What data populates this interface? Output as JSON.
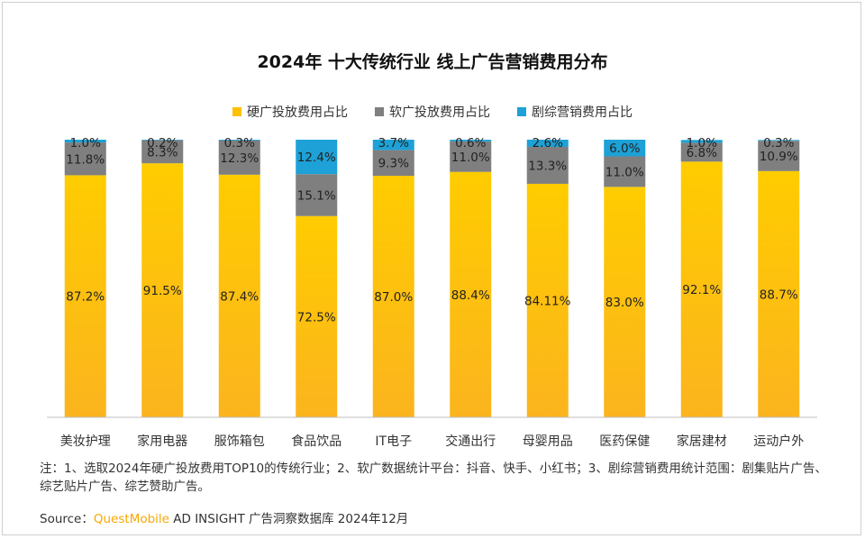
{
  "title": "2024年 十大传统行业 线上广告营销费用分布",
  "legend": [
    {
      "label": "硬广投放费用占比",
      "color": "#FFC000"
    },
    {
      "label": "软广投放费用占比",
      "color": "#7F7F7F"
    },
    {
      "label": "剧综营销费用占比",
      "color": "#1DA1D6"
    }
  ],
  "chart_data": {
    "type": "bar",
    "stacked": true,
    "categories": [
      "美妆护理",
      "家用电器",
      "服饰箱包",
      "食品饮品",
      "IT电子",
      "交通出行",
      "母婴用品",
      "医药保健",
      "家居建材",
      "运动户外"
    ],
    "series": [
      {
        "name": "硬广投放费用占比",
        "color": "#FFC000",
        "values": [
          87.2,
          91.5,
          87.4,
          72.5,
          87.0,
          88.4,
          84.11,
          83.0,
          92.1,
          88.7
        ],
        "labels": [
          "87.2%",
          "91.5%",
          "87.4%",
          "72.5%",
          "87.0%",
          "88.4%",
          "84.11%",
          "83.0%",
          "92.1%",
          "88.7%"
        ]
      },
      {
        "name": "软广投放费用占比",
        "color": "#7F7F7F",
        "values": [
          11.8,
          8.3,
          12.3,
          15.1,
          9.3,
          11.0,
          13.3,
          11.0,
          6.8,
          10.9
        ],
        "labels": [
          "11.8%",
          "8.3%",
          "12.3%",
          "15.1%",
          "9.3%",
          "11.0%",
          "13.3%",
          "11.0%",
          "6.8%",
          "10.9%"
        ]
      },
      {
        "name": "剧综营销费用占比",
        "color": "#1DA1D6",
        "values": [
          1.0,
          0.2,
          0.3,
          12.4,
          3.7,
          0.6,
          2.6,
          6.0,
          1.0,
          0.3
        ],
        "labels": [
          "1.0%",
          "0.2%",
          "0.3%",
          "12.4%",
          "3.7%",
          "0.6%",
          "2.6%",
          "6.0%",
          "1.0%",
          "0.3%"
        ]
      }
    ],
    "ylim": [
      0,
      100
    ],
    "legend_position": "top",
    "grid": false
  },
  "note": "注：1、选取2024年硬广投放费用TOP10的传统行业；2、软广数据统计平台：抖音、快手、小红书；3、剧综营销费用统计范围：剧集贴片广告、综艺贴片广告、综艺赞助广告。",
  "source": {
    "prefix": "Source：",
    "brand": "QuestMobile",
    "rest": " AD INSIGHT 广告洞察数据库 2024年12月"
  }
}
